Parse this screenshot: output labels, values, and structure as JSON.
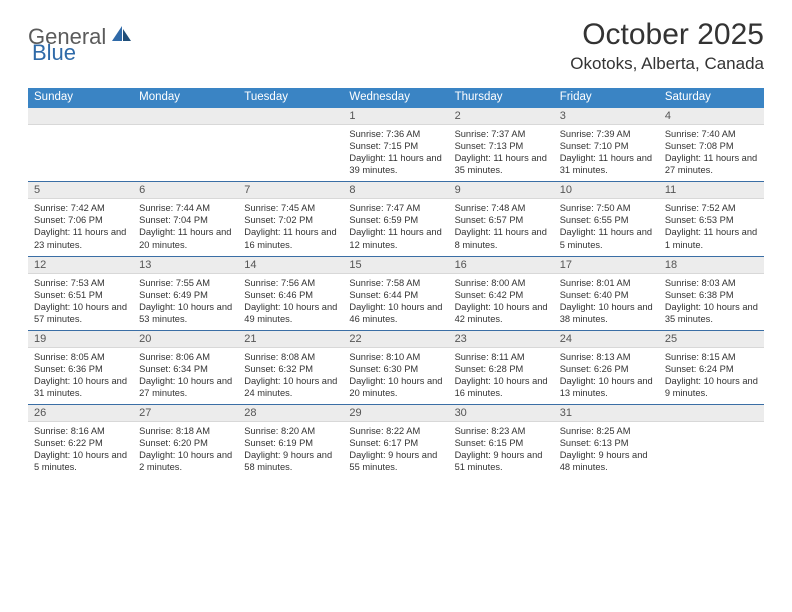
{
  "logo": {
    "text1": "General",
    "text2": "Blue"
  },
  "title": "October 2025",
  "location": "Okotoks, Alberta, Canada",
  "colors": {
    "headerBar": "#3a84c4",
    "headerText": "#ffffff",
    "dayNumBg": "#ececec",
    "borderBlue": "#3a6ea5",
    "bodyText": "#333333",
    "logoGray": "#5b5b5b",
    "logoBlue": "#2f6aa8"
  },
  "dow": [
    "Sunday",
    "Monday",
    "Tuesday",
    "Wednesday",
    "Thursday",
    "Friday",
    "Saturday"
  ],
  "weeks": [
    [
      {
        "n": "",
        "sunrise": "",
        "sunset": "",
        "daylight": ""
      },
      {
        "n": "",
        "sunrise": "",
        "sunset": "",
        "daylight": ""
      },
      {
        "n": "",
        "sunrise": "",
        "sunset": "",
        "daylight": ""
      },
      {
        "n": "1",
        "sunrise": "Sunrise: 7:36 AM",
        "sunset": "Sunset: 7:15 PM",
        "daylight": "Daylight: 11 hours and 39 minutes."
      },
      {
        "n": "2",
        "sunrise": "Sunrise: 7:37 AM",
        "sunset": "Sunset: 7:13 PM",
        "daylight": "Daylight: 11 hours and 35 minutes."
      },
      {
        "n": "3",
        "sunrise": "Sunrise: 7:39 AM",
        "sunset": "Sunset: 7:10 PM",
        "daylight": "Daylight: 11 hours and 31 minutes."
      },
      {
        "n": "4",
        "sunrise": "Sunrise: 7:40 AM",
        "sunset": "Sunset: 7:08 PM",
        "daylight": "Daylight: 11 hours and 27 minutes."
      }
    ],
    [
      {
        "n": "5",
        "sunrise": "Sunrise: 7:42 AM",
        "sunset": "Sunset: 7:06 PM",
        "daylight": "Daylight: 11 hours and 23 minutes."
      },
      {
        "n": "6",
        "sunrise": "Sunrise: 7:44 AM",
        "sunset": "Sunset: 7:04 PM",
        "daylight": "Daylight: 11 hours and 20 minutes."
      },
      {
        "n": "7",
        "sunrise": "Sunrise: 7:45 AM",
        "sunset": "Sunset: 7:02 PM",
        "daylight": "Daylight: 11 hours and 16 minutes."
      },
      {
        "n": "8",
        "sunrise": "Sunrise: 7:47 AM",
        "sunset": "Sunset: 6:59 PM",
        "daylight": "Daylight: 11 hours and 12 minutes."
      },
      {
        "n": "9",
        "sunrise": "Sunrise: 7:48 AM",
        "sunset": "Sunset: 6:57 PM",
        "daylight": "Daylight: 11 hours and 8 minutes."
      },
      {
        "n": "10",
        "sunrise": "Sunrise: 7:50 AM",
        "sunset": "Sunset: 6:55 PM",
        "daylight": "Daylight: 11 hours and 5 minutes."
      },
      {
        "n": "11",
        "sunrise": "Sunrise: 7:52 AM",
        "sunset": "Sunset: 6:53 PM",
        "daylight": "Daylight: 11 hours and 1 minute."
      }
    ],
    [
      {
        "n": "12",
        "sunrise": "Sunrise: 7:53 AM",
        "sunset": "Sunset: 6:51 PM",
        "daylight": "Daylight: 10 hours and 57 minutes."
      },
      {
        "n": "13",
        "sunrise": "Sunrise: 7:55 AM",
        "sunset": "Sunset: 6:49 PM",
        "daylight": "Daylight: 10 hours and 53 minutes."
      },
      {
        "n": "14",
        "sunrise": "Sunrise: 7:56 AM",
        "sunset": "Sunset: 6:46 PM",
        "daylight": "Daylight: 10 hours and 49 minutes."
      },
      {
        "n": "15",
        "sunrise": "Sunrise: 7:58 AM",
        "sunset": "Sunset: 6:44 PM",
        "daylight": "Daylight: 10 hours and 46 minutes."
      },
      {
        "n": "16",
        "sunrise": "Sunrise: 8:00 AM",
        "sunset": "Sunset: 6:42 PM",
        "daylight": "Daylight: 10 hours and 42 minutes."
      },
      {
        "n": "17",
        "sunrise": "Sunrise: 8:01 AM",
        "sunset": "Sunset: 6:40 PM",
        "daylight": "Daylight: 10 hours and 38 minutes."
      },
      {
        "n": "18",
        "sunrise": "Sunrise: 8:03 AM",
        "sunset": "Sunset: 6:38 PM",
        "daylight": "Daylight: 10 hours and 35 minutes."
      }
    ],
    [
      {
        "n": "19",
        "sunrise": "Sunrise: 8:05 AM",
        "sunset": "Sunset: 6:36 PM",
        "daylight": "Daylight: 10 hours and 31 minutes."
      },
      {
        "n": "20",
        "sunrise": "Sunrise: 8:06 AM",
        "sunset": "Sunset: 6:34 PM",
        "daylight": "Daylight: 10 hours and 27 minutes."
      },
      {
        "n": "21",
        "sunrise": "Sunrise: 8:08 AM",
        "sunset": "Sunset: 6:32 PM",
        "daylight": "Daylight: 10 hours and 24 minutes."
      },
      {
        "n": "22",
        "sunrise": "Sunrise: 8:10 AM",
        "sunset": "Sunset: 6:30 PM",
        "daylight": "Daylight: 10 hours and 20 minutes."
      },
      {
        "n": "23",
        "sunrise": "Sunrise: 8:11 AM",
        "sunset": "Sunset: 6:28 PM",
        "daylight": "Daylight: 10 hours and 16 minutes."
      },
      {
        "n": "24",
        "sunrise": "Sunrise: 8:13 AM",
        "sunset": "Sunset: 6:26 PM",
        "daylight": "Daylight: 10 hours and 13 minutes."
      },
      {
        "n": "25",
        "sunrise": "Sunrise: 8:15 AM",
        "sunset": "Sunset: 6:24 PM",
        "daylight": "Daylight: 10 hours and 9 minutes."
      }
    ],
    [
      {
        "n": "26",
        "sunrise": "Sunrise: 8:16 AM",
        "sunset": "Sunset: 6:22 PM",
        "daylight": "Daylight: 10 hours and 5 minutes."
      },
      {
        "n": "27",
        "sunrise": "Sunrise: 8:18 AM",
        "sunset": "Sunset: 6:20 PM",
        "daylight": "Daylight: 10 hours and 2 minutes."
      },
      {
        "n": "28",
        "sunrise": "Sunrise: 8:20 AM",
        "sunset": "Sunset: 6:19 PM",
        "daylight": "Daylight: 9 hours and 58 minutes."
      },
      {
        "n": "29",
        "sunrise": "Sunrise: 8:22 AM",
        "sunset": "Sunset: 6:17 PM",
        "daylight": "Daylight: 9 hours and 55 minutes."
      },
      {
        "n": "30",
        "sunrise": "Sunrise: 8:23 AM",
        "sunset": "Sunset: 6:15 PM",
        "daylight": "Daylight: 9 hours and 51 minutes."
      },
      {
        "n": "31",
        "sunrise": "Sunrise: 8:25 AM",
        "sunset": "Sunset: 6:13 PM",
        "daylight": "Daylight: 9 hours and 48 minutes."
      },
      {
        "n": "",
        "sunrise": "",
        "sunset": "",
        "daylight": ""
      }
    ]
  ]
}
